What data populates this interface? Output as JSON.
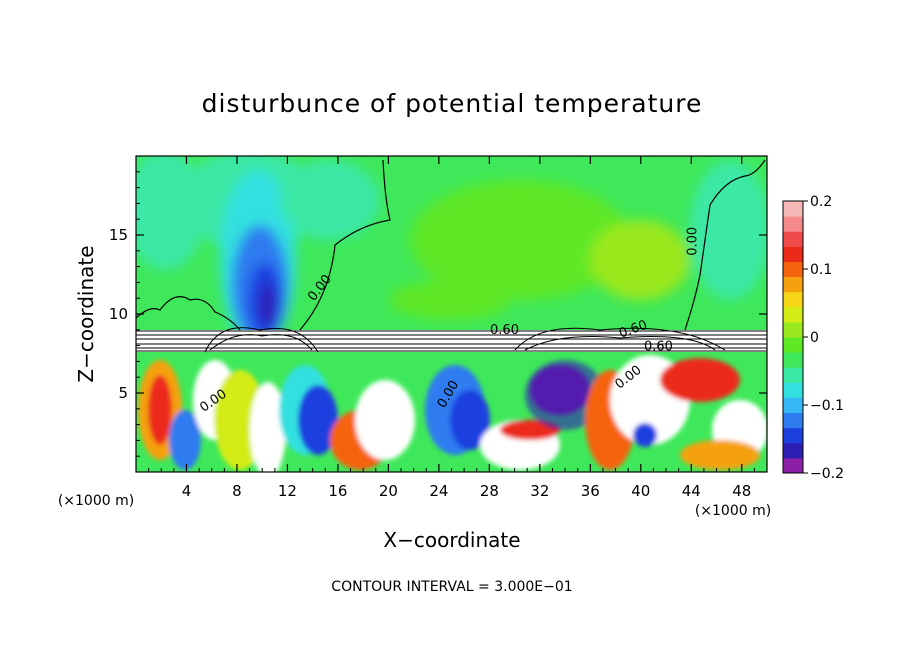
{
  "chart_data": {
    "type": "heatmap",
    "title": "disturbunce of potential temperature",
    "xlabel": "X−coordinate",
    "ylabel": "Z−coordinate",
    "x_unit": "(×1000 m)",
    "x_unit_right": "(×1000 m)",
    "xlim": [
      0,
      50
    ],
    "ylim": [
      0,
      20
    ],
    "x_ticks": [
      4,
      8,
      12,
      16,
      20,
      24,
      28,
      32,
      36,
      40,
      44,
      48
    ],
    "y_ticks": [
      5,
      10,
      15
    ],
    "colorbar": {
      "range": [
        -0.2,
        0.2
      ],
      "tick_values": [
        0.2,
        0.1,
        0,
        -0.1,
        -0.2
      ],
      "tick_labels": [
        "0.2",
        "0.1",
        "0",
        "−0.1",
        "−0.2"
      ],
      "colors": [
        "#8b1fa6",
        "#2d1fb4",
        "#1e3fe0",
        "#2f7cf0",
        "#37b7f5",
        "#32e0e0",
        "#3ae8a5",
        "#3fe85a",
        "#5ee826",
        "#9ae81f",
        "#d4ec16",
        "#f5d515",
        "#f5a10f",
        "#f5640d",
        "#ec2a1a",
        "#f04a4a",
        "#f58a8a",
        "#f6b7b7"
      ]
    },
    "contour_labels": [
      {
        "text": "0.00",
        "x": 14.8,
        "y": 11.5,
        "rotation": -52
      },
      {
        "text": "0.00",
        "x": 44.4,
        "y": 14.6,
        "rotation": -90
      },
      {
        "text": "0.60",
        "x": 29.2,
        "y": 8.75,
        "rotation": 0
      },
      {
        "text": "0.60",
        "x": 39.5,
        "y": 8.8,
        "rotation": -20
      },
      {
        "text": "0.60",
        "x": 41.4,
        "y": 7.7,
        "rotation": 0
      },
      {
        "text": "0.00",
        "x": 39.2,
        "y": 5.8,
        "rotation": -38
      },
      {
        "text": "0.00",
        "x": 25.0,
        "y": 4.8,
        "rotation": -60
      },
      {
        "text": "0.00",
        "x": 6.3,
        "y": 4.3,
        "rotation": -35
      }
    ],
    "contour_interval_text": "CONTOUR INTERVAL = 3.000E−01",
    "grid": false,
    "legend": "colorbar-right"
  }
}
